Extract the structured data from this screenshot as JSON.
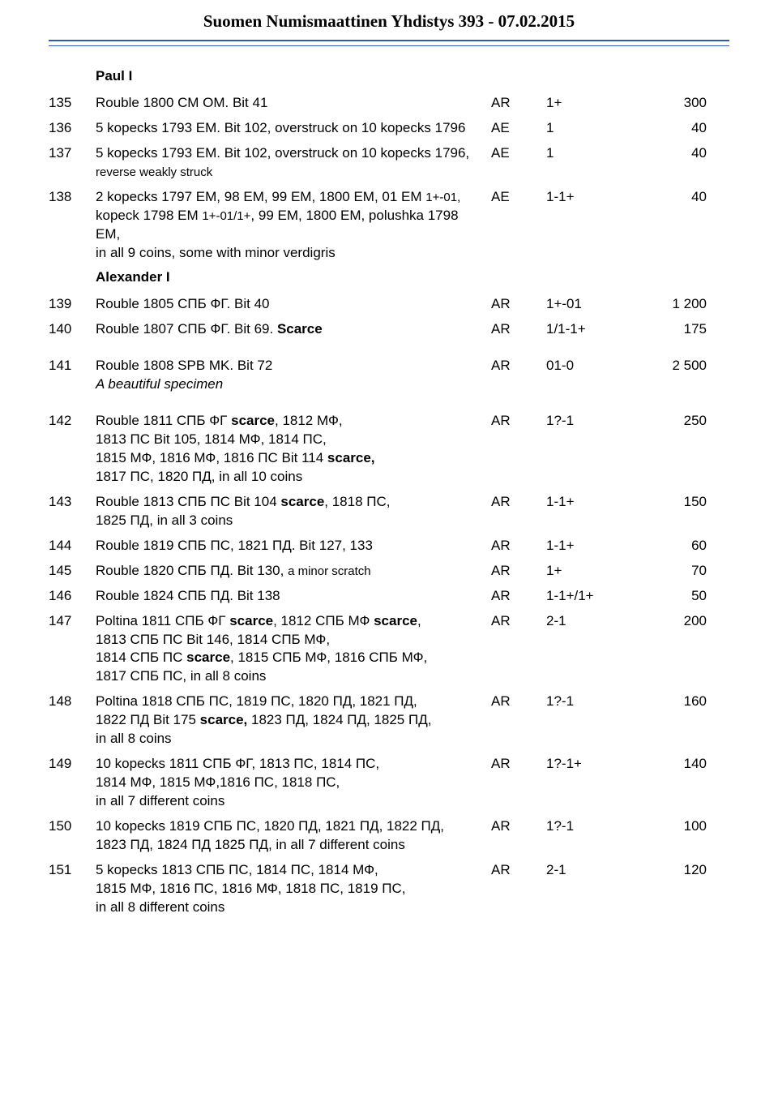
{
  "title": "Suomen Numismaattinen Yhdistys 393 - 07.02.2015",
  "sections": [
    {
      "label": "Paul I"
    }
  ],
  "lots": [
    {
      "n": "",
      "section": true,
      "desc": "Paul I",
      "metal": "",
      "grade": "",
      "price": ""
    },
    {
      "n": "135",
      "desc": "Rouble 1800 СМ ОМ. Bit 41",
      "metal": "AR",
      "grade": "1+",
      "price": "300"
    },
    {
      "n": "136",
      "desc": "5 kopecks 1793 ЕМ. Bit 102, overstruck on 10 kopecks 1796",
      "metal": "AE",
      "grade": "1",
      "price": "40"
    },
    {
      "n": "137",
      "desc": "5 kopecks 1793 ЕМ. Bit 102, overstruck on 10 kopecks 1796, <span class='sm'>reverse weakly struck</span>",
      "metal": "AE",
      "grade": "1",
      "price": "40",
      "html": true
    },
    {
      "n": "138",
      "desc": "2 kopecks 1797 ЕМ, 98 ЕМ, 99 ЕМ, 1800 ЕМ, 01 ЕМ <span class='sm'>1+-01,</span> kopeck 1798 ЕМ <span class='sm'>1+-01/1+</span>, 99 ЕМ, 1800 ЕМ, polushka 1798 ЕМ,<br>in all 9 coins, some with minor verdigris",
      "metal": "AE",
      "grade": "1-1+",
      "price": "40",
      "html": true
    },
    {
      "n": "",
      "section": true,
      "desc": "Alexander I",
      "metal": "",
      "grade": "",
      "price": ""
    },
    {
      "n": "139",
      "desc": "Rouble 1805 СПБ ФГ. Bit 40",
      "metal": "AR",
      "grade": "1+-01",
      "price": "1 200"
    },
    {
      "n": "140",
      "desc": "Rouble 1807 СПБ ФГ. Bit 69. <b>Scarce</b>",
      "metal": "AR",
      "grade": "1/1-1+",
      "price": "175",
      "html": true
    },
    {
      "n": "141",
      "gap": true,
      "desc": "Rouble 1808 SPB MK. Bit 72<br><i>A beautiful specimen</i>",
      "metal": "AR",
      "grade": "01-0",
      "price": "2 500",
      "html": true
    },
    {
      "n": "142",
      "gap": true,
      "desc": "Rouble 1811 СПБ ФГ <b>scarce</b>, 1812  МФ,<br>1813 ПС Bit 105, 1814 МФ, 1814 ПС,<br>1815 МФ, 1816 МФ, 1816 ПС Bit 114 <b>scarce,</b><br>1817 ПС, 1820 ПД, in all 10 coins",
      "metal": "AR",
      "grade": "1?-1",
      "price": "250",
      "html": true
    },
    {
      "n": "143",
      "desc": "Rouble 1813 СПБ ПС Bit 104 <b>scarce</b>, 1818 ПС,<br>1825 ПД, in all 3 coins",
      "metal": "AR",
      "grade": "1-1+",
      "price": "150",
      "html": true
    },
    {
      "n": "144",
      "desc": "Rouble 1819 СПБ ПС, 1821 ПД. Bit 127, 133",
      "metal": "AR",
      "grade": "1-1+",
      "price": "60"
    },
    {
      "n": "145",
      "desc": "Rouble 1820 СПБ ПД. Bit 130, <span class='sm'>a minor scratch</span>",
      "metal": "AR",
      "grade": "1+",
      "price": "70",
      "html": true
    },
    {
      "n": "146",
      "desc": "Rouble 1824 СПБ ПД. Bit 138",
      "metal": "AR",
      "grade": "1-1+/1+",
      "price": "50"
    },
    {
      "n": "147",
      "desc": "Poltina 1811 СПБ ФГ <b>scarce</b>, 1812 СПБ МФ <b>scarce</b>,<br>1813 СПБ ПС Bit 146, 1814 СПБ МФ,<br>1814 СПБ ПС <b>scarce</b>, 1815 СПБ МФ, 1816 СПБ МФ,<br>1817 СПБ ПС, in all 8 coins",
      "metal": "AR",
      "grade": "2-1",
      "price": "200",
      "html": true
    },
    {
      "n": "148",
      "desc": "Poltina 1818 СПБ ПС, 1819 ПС, 1820 ПД, 1821 ПД,<br>1822 ПД Bit 175 <b>scarce,</b> 1823 ПД, 1824 ПД, 1825 ПД,<br>in all 8 coins",
      "metal": "AR",
      "grade": "1?-1",
      "price": "160",
      "html": true
    },
    {
      "n": "149",
      "desc": "10 kopecks 1811 СПБ ФГ, 1813 ПС, 1814 ПС,<br>1814 МФ, 1815 МФ,1816 ПС, 1818 ПС,<br>in all 7 different coins",
      "metal": "AR",
      "grade": "1?-1+",
      "price": "140",
      "html": true
    },
    {
      "n": "150",
      "desc": "10 kopecks 1819 СПБ ПС, 1820 ПД, 1821 ПД, 1822 ПД,<br>1823 ПД, 1824 ПД 1825 ПД, in all 7 different coins",
      "metal": "AR",
      "grade": "1?-1",
      "price": "100",
      "html": true
    },
    {
      "n": "151",
      "desc": "5 kopecks 1813 СПБ ПС, 1814 ПС, 1814 МФ,<br>1815 МФ, 1816 ПС, 1816 МФ, 1818 ПС, 1819 ПС,<br>in all 8 different coins",
      "metal": "AR",
      "grade": "2-1",
      "price": "120",
      "html": true
    }
  ]
}
